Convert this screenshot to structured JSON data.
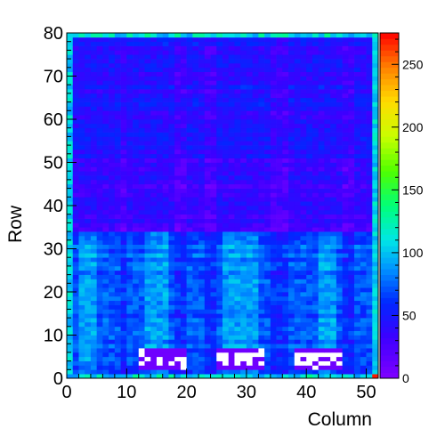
{
  "chart_data": {
    "type": "heatmap",
    "title": "",
    "xlabel": "Column",
    "ylabel": "Row",
    "x_range": [
      0,
      52
    ],
    "y_range": [
      0,
      80
    ],
    "n_cols": 52,
    "n_rows": 80,
    "x_ticks": [
      0,
      10,
      20,
      30,
      40,
      50
    ],
    "y_ticks": [
      0,
      10,
      20,
      30,
      40,
      50,
      60,
      70,
      80
    ],
    "z_range": [
      0,
      275
    ],
    "colorbar_ticks": [
      0,
      50,
      100,
      150,
      200,
      250
    ],
    "colorscale": "rainbow",
    "background_color": "#ffffff",
    "empty_cell_color": "#ffffff",
    "grid": false,
    "legend": "colorbar-right",
    "pattern": {
      "dominant_value": 45,
      "edge_rows_value": 110,
      "edge_cols_value": 105,
      "low_row_band": {
        "rows": [
          0,
          33
        ],
        "value": 70
      },
      "dim_band": {
        "rows": [
          34,
          50
        ],
        "value": 35
      },
      "upper_band": {
        "rows": [
          51,
          79
        ],
        "value": 45
      },
      "dark_columns": [
        9,
        18,
        19,
        23,
        24,
        34,
        35,
        36,
        46,
        47
      ],
      "bright_columns": [
        2,
        3,
        4,
        13,
        14,
        15,
        16,
        26,
        27,
        28,
        29,
        30,
        31,
        42,
        43,
        44
      ],
      "empty_blocks": [
        {
          "cols": [
            12,
            19
          ],
          "rows": [
            2,
            6
          ]
        },
        {
          "cols": [
            25,
            32
          ],
          "rows": [
            2,
            6
          ]
        },
        {
          "cols": [
            38,
            45
          ],
          "rows": [
            2,
            6
          ]
        }
      ],
      "hot_cell": {
        "col": 51,
        "row": 0,
        "value": 270
      }
    }
  }
}
